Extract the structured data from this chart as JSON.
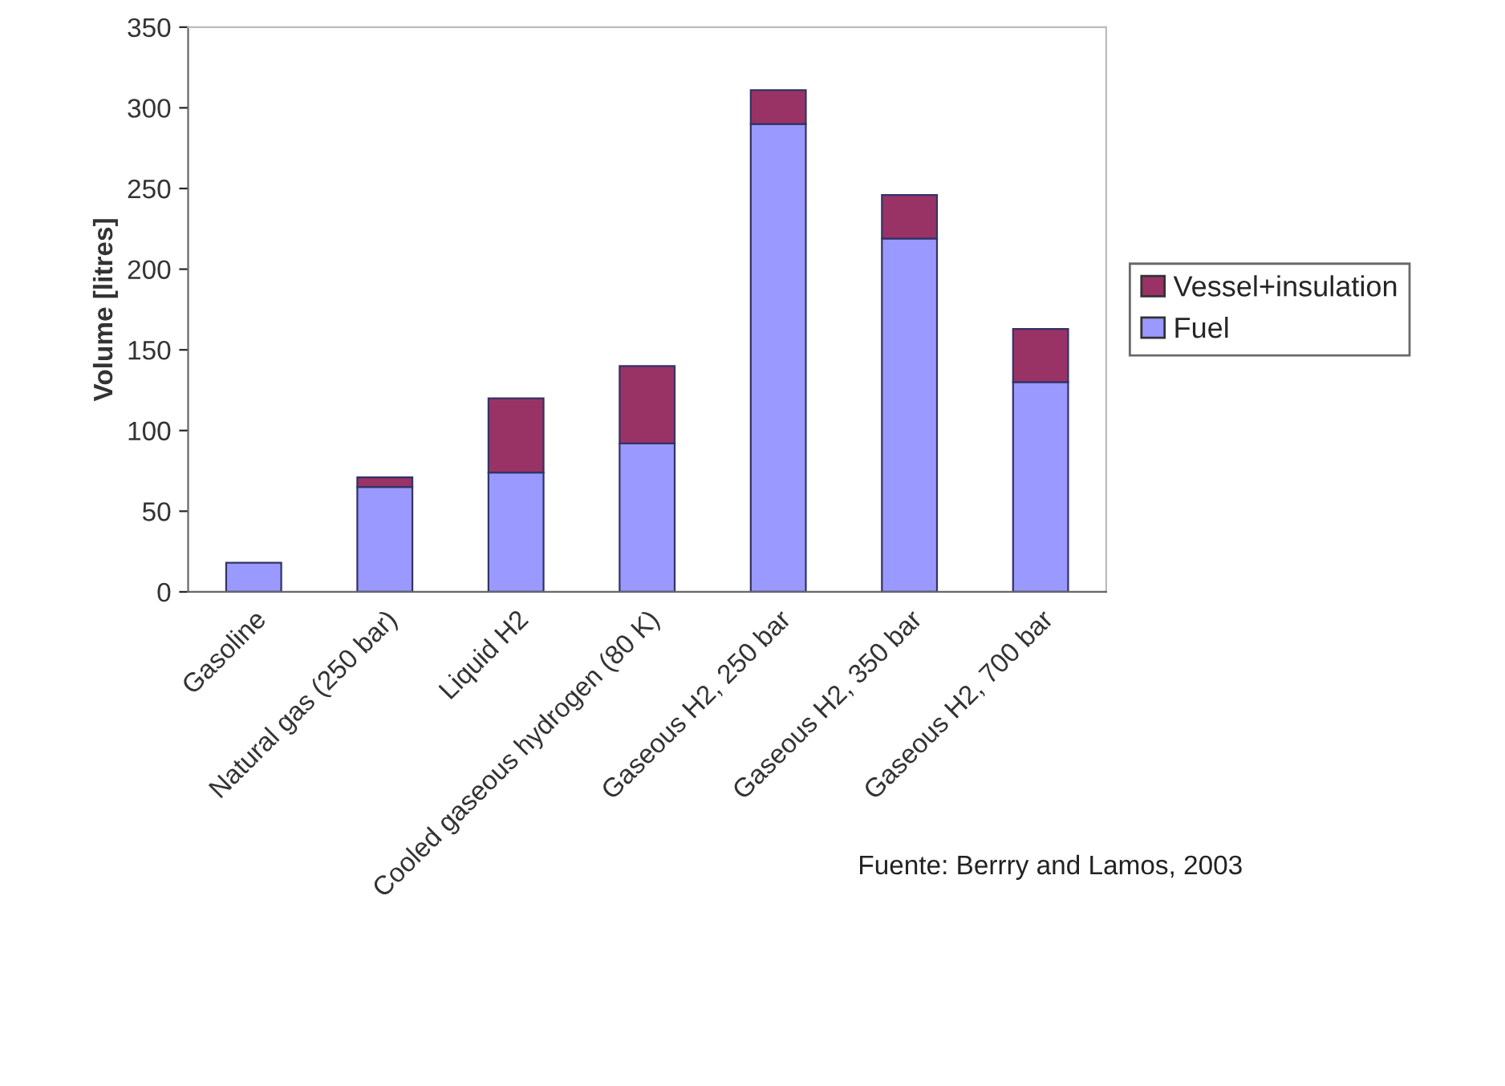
{
  "chart_data": {
    "type": "bar",
    "stacked": true,
    "ylabel": "Volume [litres]",
    "categories": [
      "Gasoline",
      "Natural gas (250 bar)",
      "Liquid H2",
      "Cooled gaseous hydrogen (80 K)",
      "Gaseous H2, 250 bar",
      "Gaseous H2, 350 bar",
      "Gaseous H2, 700 bar"
    ],
    "series": [
      {
        "name": "Fuel",
        "color": "#9999ff",
        "values": [
          18,
          65,
          74,
          92,
          290,
          219,
          130
        ]
      },
      {
        "name": "Vessel+insulation",
        "color": "#993366",
        "values": [
          null,
          6,
          46,
          48,
          21,
          27,
          33
        ]
      }
    ],
    "ylim": [
      0,
      350
    ],
    "yticks": [
      0,
      50,
      100,
      150,
      200,
      250,
      300,
      350
    ],
    "grid": false,
    "legend": "right",
    "annotations": [
      "Fuente: Berrry and Lamos, 2003"
    ]
  }
}
